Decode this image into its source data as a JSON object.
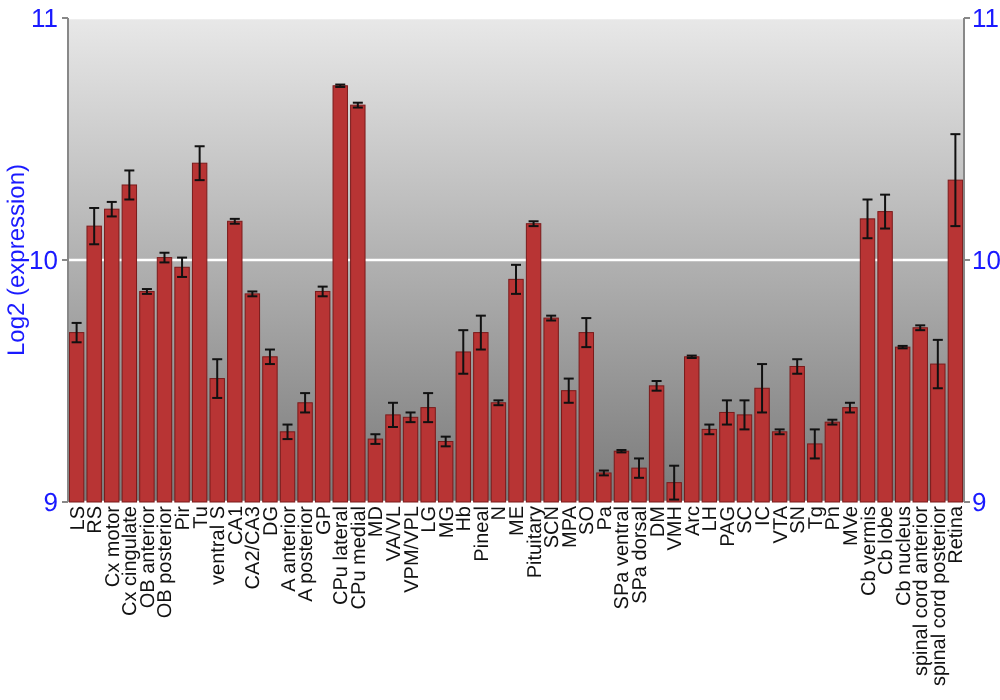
{
  "chart_data": {
    "type": "bar",
    "ylabel": "Log2 (expression)",
    "categories": [
      "LS",
      "RS",
      "Cx motor",
      "Cx cingulate",
      "OB anterior",
      "OB posterior",
      "Pir",
      "Tu",
      "ventral S",
      "CA1",
      "CA2/CA3",
      "DG",
      "A anterior",
      "A posterior",
      "GP",
      "CPu lateral",
      "CPu medial",
      "MD",
      "VA/VL",
      "VPM/VPL",
      "LG",
      "MG",
      "Hb",
      "Pineal",
      "N",
      "ME",
      "Pituitary",
      "SCN",
      "MPA",
      "SO",
      "Pa",
      "SPa ventral",
      "SPa dorsal",
      "DM",
      "VMH",
      "Arc",
      "LH",
      "PAG",
      "SC",
      "IC",
      "VTA",
      "SN",
      "Tg",
      "Pn",
      "MVe",
      "Cb vermis",
      "Cb lobe",
      "Cb nucleus",
      "spinal cord anterior",
      "spinal cord posterior",
      "Retina"
    ],
    "values": [
      9.7,
      10.14,
      10.21,
      10.31,
      9.87,
      10.01,
      9.97,
      10.4,
      9.51,
      10.16,
      9.86,
      9.6,
      9.29,
      9.41,
      9.87,
      10.72,
      10.64,
      9.26,
      9.36,
      9.35,
      9.39,
      9.25,
      9.62,
      9.7,
      9.41,
      9.92,
      10.15,
      9.76,
      9.46,
      9.7,
      9.12,
      9.21,
      9.14,
      9.48,
      9.08,
      9.6,
      9.3,
      9.37,
      9.36,
      9.47,
      9.29,
      9.56,
      9.24,
      9.33,
      9.39,
      10.17,
      10.2,
      9.64,
      9.72,
      9.57,
      10.33
    ],
    "errors": [
      0.04,
      0.075,
      0.03,
      0.06,
      0.01,
      0.02,
      0.04,
      0.07,
      0.08,
      0.01,
      0.01,
      0.03,
      0.03,
      0.04,
      0.02,
      0.005,
      0.01,
      0.02,
      0.05,
      0.02,
      0.06,
      0.02,
      0.09,
      0.07,
      0.01,
      0.06,
      0.01,
      0.01,
      0.05,
      0.06,
      0.01,
      0.005,
      0.04,
      0.02,
      0.07,
      0.005,
      0.02,
      0.05,
      0.06,
      0.1,
      0.01,
      0.03,
      0.06,
      0.01,
      0.02,
      0.08,
      0.07,
      0.005,
      0.01,
      0.1,
      0.19
    ],
    "color": "#b83434",
    "ylim": [
      9,
      11
    ],
    "yticks": [
      9,
      10,
      11
    ],
    "y2lim": [
      9,
      11
    ],
    "y2ticks": [
      9,
      10,
      11
    ],
    "grid": "y"
  }
}
